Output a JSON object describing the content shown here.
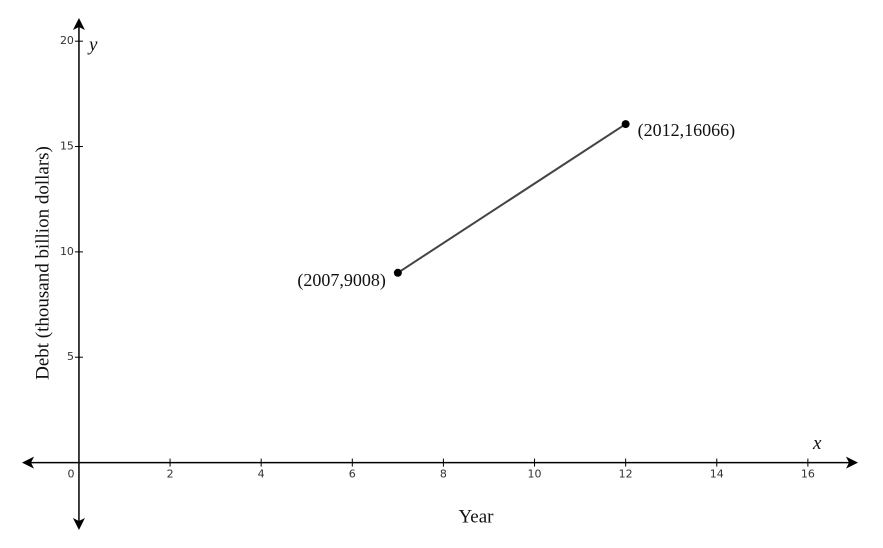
{
  "chart_data": {
    "type": "line",
    "x_label": "Year",
    "y_label": "Debt (thousand billion dollars)",
    "x_axis_letter": "x",
    "y_axis_letter": "y",
    "series": [
      {
        "x": [
          7,
          12
        ],
        "values": [
          9.008,
          16.066
        ],
        "color": "#444444"
      }
    ],
    "annotations": [
      "(2007,9008)",
      "(2012,16066)"
    ],
    "xlim": [
      -1.25,
      17.1
    ],
    "ylim": [
      -3.2,
      21.1
    ],
    "xticks": [
      0,
      2,
      4,
      6,
      8,
      10,
      12,
      14,
      16
    ],
    "yticks": [
      5,
      10,
      15,
      20
    ]
  }
}
